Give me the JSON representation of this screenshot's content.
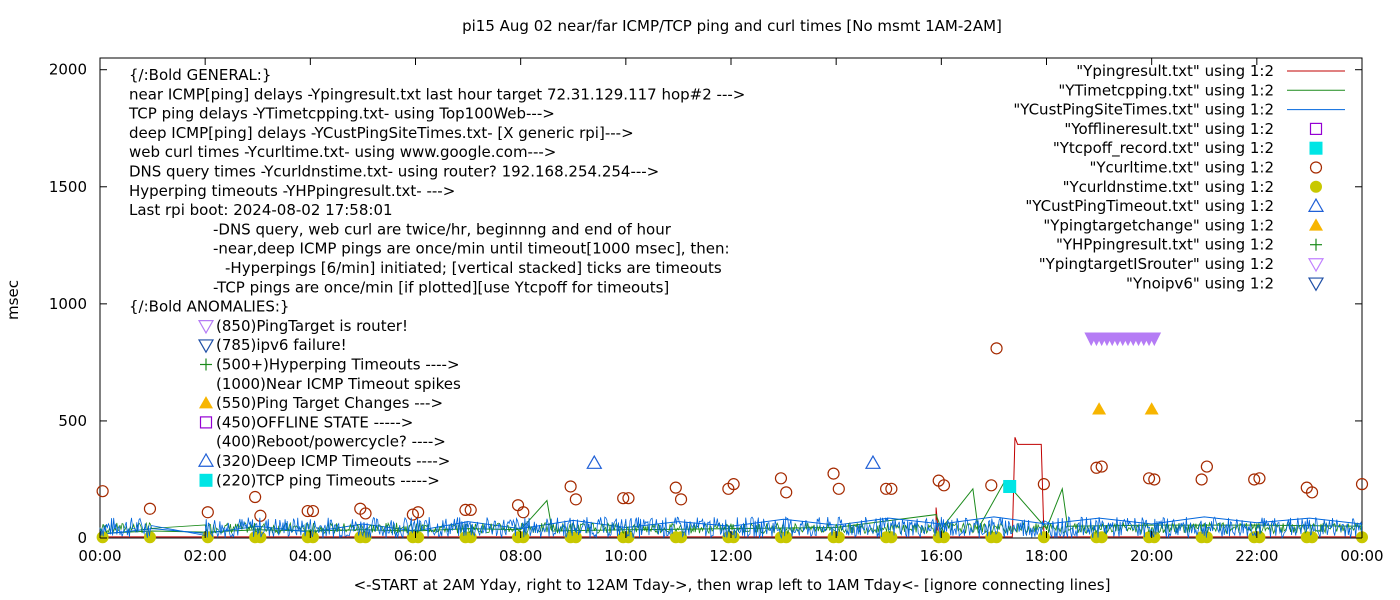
{
  "chart_data": {
    "type": "scatter",
    "title": "pi15 Aug 02  near/far ICMP/TCP ping and curl times [No msmt 1AM-2AM]",
    "xlabel": "<-START at 2AM Yday, right to 12AM Tday->, then wrap left to 1AM Tday<- [ignore connecting lines]",
    "ylabel": "msec",
    "xlim": [
      0,
      24
    ],
    "ylim": [
      0,
      2050
    ],
    "x_ticks": [
      "00:00",
      "02:00",
      "04:00",
      "06:00",
      "08:00",
      "10:00",
      "12:00",
      "14:00",
      "16:00",
      "18:00",
      "20:00",
      "22:00",
      "00:00"
    ],
    "y_ticks": [
      0,
      500,
      1000,
      1500,
      2000
    ],
    "legend_position": "top-right",
    "annotations": [
      "{/:Bold GENERAL:}",
      "near ICMP[ping] delays -Ypingresult.txt last hour target 72.31.129.117 hop#2 --->",
      "TCP ping delays -YTimetcpping.txt- using Top100Web--->",
      "deep ICMP[ping] delays -YCustPingSiteTimes.txt- [X generic rpi]--->",
      "web curl times -Ycurltime.txt- using www.google.com--->",
      "DNS query times -Ycurldnstime.txt- using router? 192.168.254.254--->",
      "Hyperping timeouts -YHPpingresult.txt- --->",
      "Last rpi boot: 2024-08-02 17:58:01",
      "-DNS query, web curl are twice/hr, beginnng and end of hour",
      "-near,deep ICMP pings are once/min until timeout[1000 msec], then:",
      "-Hyperpings [6/min] initiated; [vertical stacked] ticks are timeouts",
      "-TCP pings are once/min [if plotted][use Ytcpoff for timeouts]",
      "{/:Bold ANOMALIES:}"
    ],
    "anomalies": [
      {
        "marker": "inverted-triangle-violet",
        "text": "(850)PingTarget is router!"
      },
      {
        "marker": "inverted-triangle-blue",
        "text": "(785)ipv6 failure!"
      },
      {
        "marker": "plus-green",
        "text": "(500+)Hyperping Timeouts ---->"
      },
      {
        "marker": "",
        "text": "(1000)Near ICMP Timeout spikes"
      },
      {
        "marker": "triangle-filled-orange",
        "text": "(550)Ping Target Changes --->"
      },
      {
        "marker": "square-open-purple",
        "text": "(450)OFFLINE STATE ----->"
      },
      {
        "marker": "",
        "text": "(400)Reboot/powercycle? ---->"
      },
      {
        "marker": "triangle-open-blue",
        "text": "(320)Deep ICMP Timeouts ---->"
      },
      {
        "marker": "square-filled-cyan",
        "text": "(220)TCP ping Timeouts ----->"
      }
    ],
    "series": [
      {
        "name": "\"Ypingresult.txt\" using 1:2",
        "style": "line",
        "color": "#c00000",
        "points": [
          [
            0,
            5
          ],
          [
            15.9,
            5
          ],
          [
            15.9,
            130
          ],
          [
            15.95,
            5
          ],
          [
            17.35,
            5
          ],
          [
            17.4,
            430
          ],
          [
            17.45,
            400
          ],
          [
            17.9,
            400
          ],
          [
            17.95,
            20
          ],
          [
            18.0,
            5
          ],
          [
            24,
            5
          ]
        ]
      },
      {
        "name": "\"YTimetcpping.txt\" using 1:2",
        "style": "line",
        "color": "#1b8a1b",
        "points": [
          [
            0,
            20
          ],
          [
            1,
            30
          ],
          [
            2,
            25
          ],
          [
            3,
            35
          ],
          [
            4,
            30
          ],
          [
            5,
            35
          ],
          [
            6,
            30
          ],
          [
            7,
            40
          ],
          [
            8,
            35
          ],
          [
            8.5,
            160
          ],
          [
            8.6,
            30
          ],
          [
            10,
            35
          ],
          [
            12,
            40
          ],
          [
            14,
            45
          ],
          [
            15.9,
            100
          ],
          [
            16,
            40
          ],
          [
            16.6,
            210
          ],
          [
            16.7,
            40
          ],
          [
            17.2,
            240
          ],
          [
            17.3,
            220
          ],
          [
            18,
            40
          ],
          [
            18.3,
            210
          ],
          [
            18.4,
            50
          ],
          [
            20,
            55
          ],
          [
            22,
            55
          ],
          [
            24,
            50
          ]
        ]
      },
      {
        "name": "\"YCustPingSiteTimes.txt\" using 1:2",
        "style": "line",
        "color": "#0066dd",
        "points": [
          [
            0,
            15
          ],
          [
            1,
            40
          ],
          [
            2,
            20
          ],
          [
            3,
            50
          ],
          [
            4,
            25
          ],
          [
            5,
            60
          ],
          [
            6,
            30
          ],
          [
            7,
            70
          ],
          [
            8,
            40
          ],
          [
            9,
            75
          ],
          [
            10,
            45
          ],
          [
            11,
            70
          ],
          [
            12,
            50
          ],
          [
            13,
            80
          ],
          [
            14,
            55
          ],
          [
            15,
            85
          ],
          [
            16,
            60
          ],
          [
            17,
            90
          ],
          [
            18,
            60
          ],
          [
            19,
            85
          ],
          [
            20,
            60
          ],
          [
            21,
            90
          ],
          [
            22,
            65
          ],
          [
            23,
            85
          ],
          [
            24,
            60
          ]
        ]
      },
      {
        "name": "\"Yofflineresult.txt\" using 1:2",
        "style": "square-open",
        "color": "#9400d3",
        "points": []
      },
      {
        "name": "\"Ytcpoff_record.txt\" using 1:2",
        "style": "square-filled",
        "color": "#00e5e5",
        "points": [
          [
            17.3,
            220
          ]
        ]
      },
      {
        "name": "\"Ycurltime.txt\" using 1:2",
        "style": "circle-open",
        "color": "#a52a00",
        "points": [
          [
            0.05,
            200
          ],
          [
            0.95,
            125
          ],
          [
            2.05,
            110
          ],
          [
            2.95,
            175
          ],
          [
            3.05,
            95
          ],
          [
            3.95,
            115
          ],
          [
            4.05,
            115
          ],
          [
            4.95,
            125
          ],
          [
            5.05,
            105
          ],
          [
            5.95,
            100
          ],
          [
            6.05,
            110
          ],
          [
            6.95,
            120
          ],
          [
            7.05,
            120
          ],
          [
            7.95,
            140
          ],
          [
            8.05,
            110
          ],
          [
            8.95,
            220
          ],
          [
            9.05,
            165
          ],
          [
            9.95,
            170
          ],
          [
            10.05,
            170
          ],
          [
            10.95,
            215
          ],
          [
            11.05,
            165
          ],
          [
            11.95,
            210
          ],
          [
            12.05,
            230
          ],
          [
            12.95,
            255
          ],
          [
            13.05,
            195
          ],
          [
            13.95,
            275
          ],
          [
            14.05,
            210
          ],
          [
            14.95,
            210
          ],
          [
            15.05,
            210
          ],
          [
            15.95,
            245
          ],
          [
            16.05,
            225
          ],
          [
            16.95,
            225
          ],
          [
            17.05,
            810
          ],
          [
            17.95,
            230
          ],
          [
            18.95,
            300
          ],
          [
            19.05,
            305
          ],
          [
            19.95,
            255
          ],
          [
            20.05,
            250
          ],
          [
            20.95,
            250
          ],
          [
            21.05,
            305
          ],
          [
            21.95,
            250
          ],
          [
            22.05,
            255
          ],
          [
            22.95,
            215
          ],
          [
            23.05,
            195
          ],
          [
            24.0,
            230
          ]
        ]
      },
      {
        "name": "\"Ycurldnstime.txt\" using 1:2",
        "style": "circle-filled",
        "color": "#c8c800",
        "points": [
          [
            0.05,
            3
          ],
          [
            0.95,
            3
          ],
          [
            2.05,
            3
          ],
          [
            2.95,
            3
          ],
          [
            3.05,
            3
          ],
          [
            3.95,
            3
          ],
          [
            4.05,
            3
          ],
          [
            4.95,
            3
          ],
          [
            5.05,
            3
          ],
          [
            5.95,
            3
          ],
          [
            6.05,
            3
          ],
          [
            6.95,
            3
          ],
          [
            7.05,
            3
          ],
          [
            7.95,
            3
          ],
          [
            8.05,
            3
          ],
          [
            8.95,
            3
          ],
          [
            9.05,
            3
          ],
          [
            9.95,
            3
          ],
          [
            10.05,
            3
          ],
          [
            10.95,
            3
          ],
          [
            11.05,
            3
          ],
          [
            11.95,
            3
          ],
          [
            12.05,
            3
          ],
          [
            12.95,
            3
          ],
          [
            13.05,
            3
          ],
          [
            13.95,
            3
          ],
          [
            14.05,
            3
          ],
          [
            14.95,
            3
          ],
          [
            15.05,
            3
          ],
          [
            15.95,
            3
          ],
          [
            16.05,
            3
          ],
          [
            16.95,
            3
          ],
          [
            17.05,
            3
          ],
          [
            17.95,
            3
          ],
          [
            18.95,
            3
          ],
          [
            19.05,
            3
          ],
          [
            19.95,
            3
          ],
          [
            20.05,
            3
          ],
          [
            20.95,
            3
          ],
          [
            21.05,
            3
          ],
          [
            21.95,
            3
          ],
          [
            22.05,
            3
          ],
          [
            22.95,
            3
          ],
          [
            23.05,
            3
          ],
          [
            24.0,
            3
          ]
        ]
      },
      {
        "name": "\"YCustPingTimeout.txt\" using 1:2",
        "style": "triangle-open",
        "color": "#1f5fd6",
        "points": [
          [
            9.4,
            320
          ],
          [
            14.7,
            320
          ]
        ]
      },
      {
        "name": "\"Ypingtargetchange\" using 1:2",
        "style": "triangle-filled",
        "color": "#f7b500",
        "points": [
          [
            19.0,
            550
          ],
          [
            20.0,
            550
          ]
        ]
      },
      {
        "name": "\"YHPpingresult.txt\" using 1:2",
        "style": "plus",
        "color": "#1b8a1b",
        "points": []
      },
      {
        "name": "\"YpingtargetISrouter\" using 1:2",
        "style": "inverted-triangle-violet",
        "color": "#c080ff",
        "points": [
          [
            18.85,
            850
          ],
          [
            18.95,
            850
          ],
          [
            19.05,
            850
          ],
          [
            19.15,
            850
          ],
          [
            19.25,
            850
          ],
          [
            19.35,
            850
          ],
          [
            19.45,
            850
          ],
          [
            19.55,
            850
          ],
          [
            19.65,
            850
          ],
          [
            19.75,
            850
          ],
          [
            19.85,
            850
          ],
          [
            19.95,
            850
          ],
          [
            20.05,
            850
          ]
        ]
      },
      {
        "name": "\"Ynoipv6\" using 1:2",
        "style": "inverted-triangle-open",
        "color": "#1f4fa6",
        "points": []
      }
    ]
  }
}
